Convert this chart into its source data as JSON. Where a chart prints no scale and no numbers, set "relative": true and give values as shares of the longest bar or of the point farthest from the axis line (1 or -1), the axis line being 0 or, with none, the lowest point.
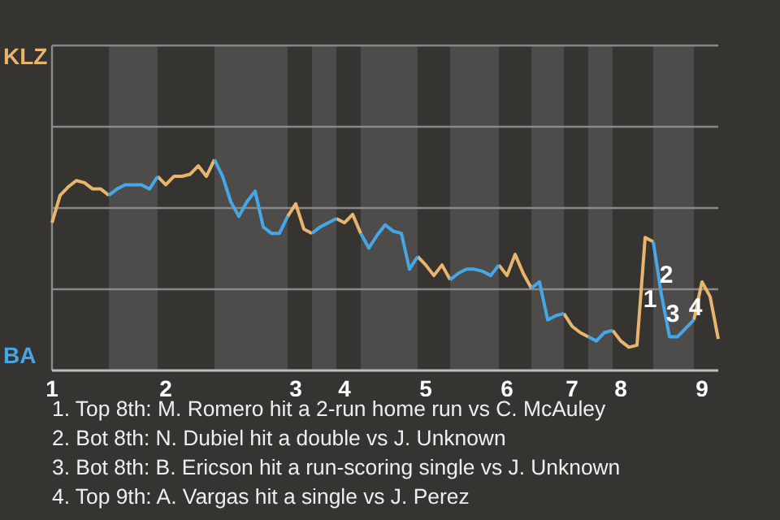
{
  "chart_data": {
    "type": "line",
    "relative": true,
    "ref_lines": [
      {
        "axis": "y",
        "value": 0.385,
        "color": "#8a8987"
      },
      {
        "axis": "y",
        "value": 0.77,
        "color": "#8a8987"
      }
    ],
    "categories": [
      "1",
      null,
      null,
      null,
      null,
      null,
      null,
      null,
      null,
      null,
      null,
      null,
      null,
      null,
      "2",
      null,
      null,
      null,
      null,
      null,
      null,
      null,
      null,
      null,
      null,
      null,
      null,
      null,
      null,
      null,
      "3",
      null,
      null,
      null,
      null,
      null,
      "4",
      null,
      null,
      null,
      null,
      null,
      null,
      null,
      null,
      null,
      "5",
      null,
      null,
      null,
      null,
      null,
      null,
      null,
      null,
      null,
      "6",
      null,
      null,
      null,
      null,
      null,
      null,
      null,
      "7",
      null,
      null,
      null,
      null,
      null,
      "8",
      null,
      null,
      null,
      null,
      null,
      null,
      null,
      null,
      null,
      "9",
      null,
      null
    ],
    "series": [
      {
        "color": "#e8b56e",
        "values": [
          0.7,
          0.83,
          0.87,
          0.9,
          0.89,
          0.86,
          0.86,
          0.83,
          null,
          null,
          null,
          null,
          null,
          0.92,
          0.88,
          0.92,
          0.92,
          0.93,
          0.97,
          0.92,
          1,
          null,
          null,
          null,
          null,
          null,
          null,
          null,
          null,
          0.73,
          0.79,
          0.67,
          0.65,
          null,
          null,
          0.72,
          0.7,
          0.74,
          0.65,
          null,
          null,
          null,
          null,
          null,
          null,
          0.54,
          0.5,
          0.45,
          0.5,
          0.43,
          null,
          null,
          null,
          null,
          null,
          0.5,
          0.45,
          0.55,
          0.46,
          0.39,
          null,
          null,
          null,
          0.27,
          0.21,
          0.18,
          0.16,
          null,
          null,
          0.19,
          0.14,
          0.11,
          0.12,
          0.63,
          0.61,
          null,
          null,
          null,
          null,
          0.24,
          0.42,
          0.35,
          0.15
        ]
      },
      {
        "color": "#46a7e6",
        "values": [
          null,
          null,
          null,
          null,
          null,
          null,
          null,
          0.83,
          0.86,
          0.88,
          0.88,
          0.88,
          0.86,
          0.92,
          null,
          null,
          null,
          null,
          null,
          null,
          1,
          0.92,
          0.8,
          0.73,
          0.8,
          0.85,
          0.68,
          0.65,
          0.65,
          0.73,
          null,
          null,
          0.65,
          0.68,
          0.7,
          0.72,
          null,
          null,
          0.65,
          0.58,
          0.64,
          0.69,
          0.66,
          0.65,
          0.48,
          0.54,
          null,
          null,
          null,
          0.43,
          0.46,
          0.48,
          0.48,
          0.47,
          0.45,
          0.5,
          null,
          null,
          null,
          0.39,
          0.42,
          0.24,
          0.26,
          0.27,
          null,
          null,
          0.16,
          0.14,
          0.18,
          0.19,
          null,
          null,
          null,
          null,
          0.61,
          0.36,
          0.16,
          0.16,
          0.2,
          0.24,
          null,
          null,
          null
        ]
      }
    ],
    "annotations": [
      "KLZ",
      "BA",
      "1",
      "2",
      "3",
      "4",
      "1. Top 8th: M. Romero hit a 2-run home run vs C. McAuley",
      "2. Bot 8th: N. Dubiel hit a double vs J. Unknown",
      "3. Bot 8th: B. Ericson hit a run-scoring single vs J. Unknown",
      "4. Top 9th: A. Vargas hit a single vs J. Perez"
    ]
  }
}
